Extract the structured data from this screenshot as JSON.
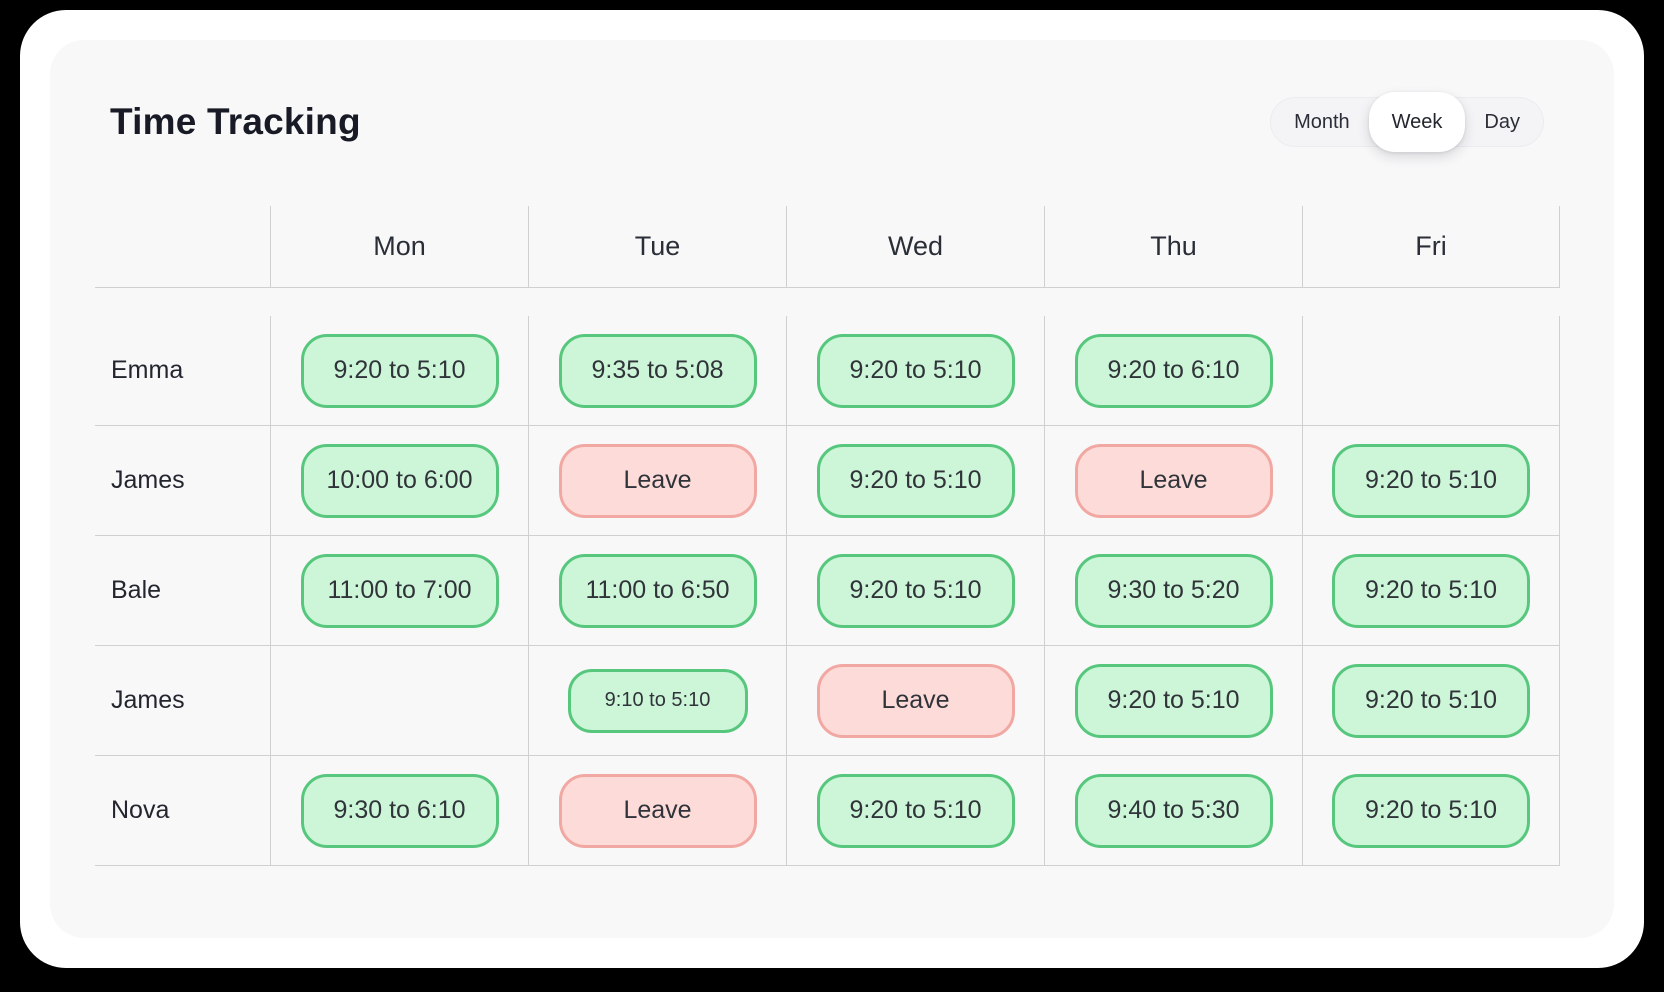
{
  "page": {
    "title": "Time Tracking"
  },
  "view_toggle": {
    "options": [
      {
        "label": "Month",
        "selected": false
      },
      {
        "label": "Week",
        "selected": true
      },
      {
        "label": "Day",
        "selected": false
      }
    ]
  },
  "colors": {
    "time_fill": "#cdf6d8",
    "time_border": "#57c77e",
    "leave_fill": "#fcdbd9",
    "leave_border": "#f2a8a2"
  },
  "schedule": {
    "columns": [
      "Mon",
      "Tue",
      "Wed",
      "Thu",
      "Fri"
    ],
    "rows": [
      {
        "name": "Emma",
        "cells": [
          {
            "type": "time",
            "label": "9:20 to 5:10"
          },
          {
            "type": "time",
            "label": "9:35 to 5:08"
          },
          {
            "type": "time",
            "label": "9:20 to 5:10"
          },
          {
            "type": "time",
            "label": "9:20 to 6:10"
          },
          {
            "type": "empty",
            "label": ""
          }
        ]
      },
      {
        "name": "James",
        "cells": [
          {
            "type": "time",
            "label": "10:00 to 6:00"
          },
          {
            "type": "leave",
            "label": "Leave"
          },
          {
            "type": "time",
            "label": "9:20 to 5:10"
          },
          {
            "type": "leave",
            "label": "Leave"
          },
          {
            "type": "time",
            "label": "9:20 to 5:10"
          }
        ]
      },
      {
        "name": "Bale",
        "cells": [
          {
            "type": "time",
            "label": "11:00 to 7:00"
          },
          {
            "type": "time",
            "label": "11:00 to 6:50"
          },
          {
            "type": "time",
            "label": "9:20 to 5:10"
          },
          {
            "type": "time",
            "label": "9:30 to 5:20"
          },
          {
            "type": "time",
            "label": "9:20 to 5:10"
          }
        ]
      },
      {
        "name": "James",
        "cells": [
          {
            "type": "empty",
            "label": ""
          },
          {
            "type": "time",
            "label": "9:10 to 5:10",
            "size": "small"
          },
          {
            "type": "leave",
            "label": "Leave"
          },
          {
            "type": "time",
            "label": "9:20 to 5:10"
          },
          {
            "type": "time",
            "label": "9:20 to 5:10"
          }
        ]
      },
      {
        "name": "Nova",
        "cells": [
          {
            "type": "time",
            "label": "9:30 to 6:10"
          },
          {
            "type": "leave",
            "label": "Leave"
          },
          {
            "type": "time",
            "label": "9:20 to 5:10"
          },
          {
            "type": "time",
            "label": "9:40 to 5:30"
          },
          {
            "type": "time",
            "label": "9:20 to 5:10"
          }
        ]
      }
    ]
  }
}
